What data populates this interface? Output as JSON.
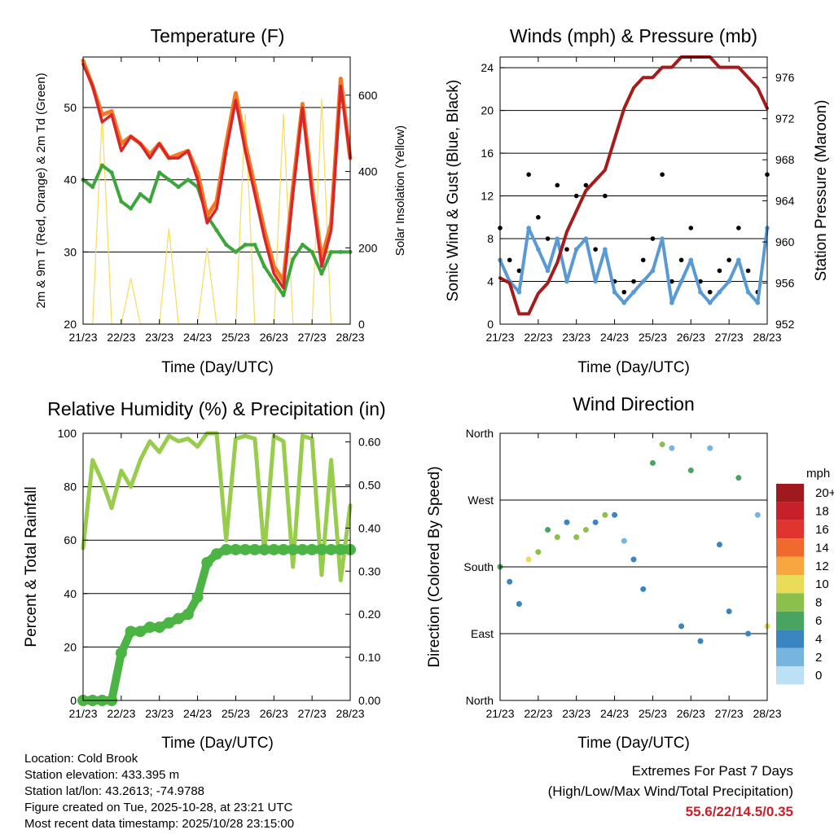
{
  "panels": {
    "temperature": {
      "title": "Temperature (F)",
      "xlabel": "Time (Day/UTC)",
      "ylabel_left": "2m & 9m T (Red, Orange) & 2m Td (Green)",
      "ylabel_right": "Solar Insolation (Yellow)",
      "left_ticks": [
        "20",
        "30",
        "40",
        "50"
      ],
      "right_ticks": [
        "0",
        "200",
        "400",
        "600"
      ]
    },
    "winds": {
      "title": "Winds (mph) & Pressure (mb)",
      "xlabel": "Time (Day/UTC)",
      "ylabel_left": "Sonic Wind & Gust (Blue, Black)",
      "ylabel_right": "Station Pressure (Maroon)",
      "left_ticks": [
        "0",
        "4",
        "8",
        "12",
        "16",
        "20",
        "24"
      ],
      "right_ticks": [
        "952",
        "956",
        "960",
        "964",
        "968",
        "972",
        "976"
      ]
    },
    "humidity": {
      "title": "Relative Humidity (%) & Precipitation (in)",
      "xlabel": "Time (Day/UTC)",
      "ylabel_left": "Percent & Total Rainfall",
      "left_ticks": [
        "0",
        "20",
        "40",
        "60",
        "80",
        "100"
      ],
      "right_ticks": [
        "0.00",
        "0.10",
        "0.20",
        "0.30",
        "0.40",
        "0.50",
        "0.60"
      ]
    },
    "direction": {
      "title": "Wind Direction",
      "xlabel": "Time (Day/UTC)",
      "ylabel_left": "Direction (Colored By Speed)",
      "left_ticks": [
        "North",
        "East",
        "South",
        "West",
        "North"
      ]
    }
  },
  "x_ticks": [
    "21/23",
    "22/23",
    "23/23",
    "24/23",
    "25/23",
    "26/23",
    "27/23",
    "28/23"
  ],
  "legend": {
    "title": "mph",
    "labels": [
      "20+",
      "18",
      "16",
      "14",
      "12",
      "10",
      "8",
      "6",
      "4",
      "2",
      "0"
    ],
    "colors": [
      "#9e1a1e",
      "#c8202a",
      "#e0342e",
      "#f06a2e",
      "#f8a640",
      "#e8dc58",
      "#8cc04c",
      "#48a460",
      "#3a84c0",
      "#78b4e0",
      "#bce0f6"
    ]
  },
  "colors": {
    "temp_2m": "#d8262a",
    "temp_9m": "#f47a22",
    "dewpoint": "#3ca63c",
    "solar": "#f6dc5a",
    "wind": "#5a9ad4",
    "gust": "#000000",
    "pressure": "#a41c1c",
    "rh": "#98cc4c",
    "precip": "#4cb444"
  },
  "info": {
    "location": "Location: Cold Brook",
    "elevation": "Station elevation: 433.395 m",
    "latlon": "Station lat/lon: 43.2613; -74.9788",
    "created": "Figure created on Tue, 2025-10-28, at 23:21 UTC",
    "recent": "Most recent data timestamp: 2025/10/28 23:15:00"
  },
  "extremes": {
    "title": "Extremes For Past 7 Days",
    "subtitle": "(High/Low/Max Wind/Total Precipitation)",
    "values": "55.6/22/14.5/0.35"
  },
  "chart_data": [
    {
      "type": "line",
      "title": "Temperature (F)",
      "x": [
        21,
        21.25,
        21.5,
        21.75,
        22,
        22.25,
        22.5,
        22.75,
        23,
        23.25,
        23.5,
        23.75,
        24,
        24.25,
        24.5,
        24.75,
        25,
        25.25,
        25.5,
        25.75,
        26,
        26.25,
        26.5,
        26.75,
        27,
        27.25,
        27.5,
        27.75,
        28
      ],
      "series": [
        {
          "name": "2m T",
          "axis": "left",
          "values": [
            56,
            53,
            48,
            49,
            44,
            46,
            45,
            43,
            45,
            43,
            43,
            44,
            40,
            34,
            36,
            44,
            51,
            44,
            38,
            32,
            27,
            25,
            38,
            50,
            38,
            28,
            33,
            53,
            43
          ]
        },
        {
          "name": "9m T",
          "axis": "left",
          "values": [
            56.5,
            53,
            49,
            49.5,
            45,
            46,
            45,
            43.5,
            45,
            43,
            43.5,
            44,
            41,
            35,
            37,
            45,
            52,
            45,
            39,
            33,
            28,
            26,
            39,
            50.5,
            39,
            29,
            34,
            54,
            43
          ]
        },
        {
          "name": "2m Td",
          "axis": "left",
          "values": [
            40,
            39,
            42,
            41,
            37,
            36,
            38,
            37,
            41,
            40,
            39,
            40,
            39,
            35,
            33,
            31,
            30,
            31,
            31,
            28,
            26,
            24,
            29,
            31,
            30,
            27,
            30,
            30,
            30
          ]
        },
        {
          "name": "Solar Insolation",
          "axis": "right",
          "values": [
            0,
            0,
            550,
            0,
            0,
            120,
            0,
            0,
            0,
            250,
            0,
            0,
            0,
            200,
            0,
            0,
            0,
            550,
            0,
            0,
            0,
            550,
            0,
            0,
            0,
            590,
            0,
            0,
            0
          ]
        }
      ],
      "xlabel": "Time (Day/UTC)",
      "ylim_left": [
        20,
        57
      ],
      "ylim_right": [
        0,
        700
      ]
    },
    {
      "type": "line",
      "title": "Winds (mph) & Pressure (mb)",
      "x": [
        21,
        21.25,
        21.5,
        21.75,
        22,
        22.25,
        22.5,
        22.75,
        23,
        23.25,
        23.5,
        23.75,
        24,
        24.25,
        24.5,
        24.75,
        25,
        25.25,
        25.5,
        25.75,
        26,
        26.25,
        26.5,
        26.75,
        27,
        27.25,
        27.5,
        27.75,
        28
      ],
      "series": [
        {
          "name": "Sonic Wind",
          "axis": "left",
          "values": [
            6,
            4,
            3,
            9,
            7,
            5,
            8,
            4,
            7,
            8,
            4,
            7,
            3,
            2,
            3,
            4,
            5,
            8,
            2,
            4,
            6,
            3,
            2,
            3,
            4,
            6,
            3,
            2,
            9
          ]
        },
        {
          "name": "Gust",
          "axis": "left",
          "values": [
            9,
            6,
            5,
            14,
            10,
            8,
            13,
            7,
            12,
            13,
            7,
            12,
            4,
            3,
            4,
            6,
            8,
            14,
            4,
            6,
            9,
            4,
            3,
            5,
            6,
            9,
            5,
            3,
            14
          ]
        },
        {
          "name": "Station Pressure",
          "axis": "right",
          "values": [
            956.5,
            956,
            953,
            953,
            955,
            956,
            958,
            961,
            963,
            965,
            966,
            967,
            970,
            973,
            975,
            976,
            976,
            977,
            977,
            978,
            978,
            978,
            978,
            977,
            977,
            977,
            976,
            975,
            973
          ]
        }
      ],
      "xlabel": "Time (Day/UTC)",
      "ylim_left": [
        0,
        25
      ],
      "ylim_right": [
        952,
        978
      ]
    },
    {
      "type": "line",
      "title": "Relative Humidity (%) & Precipitation (in)",
      "x": [
        21,
        21.25,
        21.5,
        21.75,
        22,
        22.25,
        22.5,
        22.75,
        23,
        23.25,
        23.5,
        23.75,
        24,
        24.25,
        24.5,
        24.75,
        25,
        25.25,
        25.5,
        25.75,
        26,
        26.25,
        26.5,
        26.75,
        27,
        27.25,
        27.5,
        27.75,
        28
      ],
      "series": [
        {
          "name": "Relative Humidity",
          "axis": "left",
          "values": [
            57,
            90,
            82,
            72,
            86,
            80,
            90,
            97,
            93,
            99,
            97,
            98,
            95,
            100,
            100,
            60,
            98,
            99,
            98,
            55,
            99,
            97,
            50,
            99,
            98,
            47,
            90,
            45,
            73
          ]
        },
        {
          "name": "Total Precipitation",
          "axis": "right",
          "values": [
            0,
            0,
            0,
            0,
            0.11,
            0.16,
            0.16,
            0.17,
            0.17,
            0.18,
            0.19,
            0.2,
            0.24,
            0.32,
            0.34,
            0.35,
            0.35,
            0.35,
            0.35,
            0.35,
            0.35,
            0.35,
            0.35,
            0.35,
            0.35,
            0.35,
            0.35,
            0.35,
            0.35
          ]
        }
      ],
      "xlabel": "Time (Day/UTC)",
      "ylim_left": [
        0,
        100
      ],
      "ylim_right": [
        0,
        0.62
      ]
    },
    {
      "type": "scatter",
      "title": "Wind Direction",
      "x": [
        21,
        21.25,
        21.5,
        21.75,
        22,
        22.25,
        22.5,
        22.75,
        23,
        23.25,
        23.5,
        23.75,
        24,
        24.25,
        24.5,
        24.75,
        25,
        25.25,
        25.5,
        25.75,
        26,
        26.25,
        26.5,
        26.75,
        27,
        27.25,
        27.5,
        27.75,
        28
      ],
      "series": [
        {
          "name": "Direction (deg)",
          "values": [
            180,
            160,
            130,
            190,
            200,
            230,
            220,
            240,
            220,
            230,
            240,
            250,
            250,
            215,
            190,
            150,
            320,
            345,
            340,
            100,
            310,
            80,
            340,
            210,
            120,
            300,
            90,
            250,
            100
          ]
        },
        {
          "name": "Speed (mph)",
          "values": [
            6,
            4,
            3,
            9,
            7,
            5,
            8,
            4,
            7,
            8,
            4,
            7,
            3,
            2,
            3,
            4,
            5,
            8,
            2,
            4,
            6,
            3,
            2,
            3,
            4,
            6,
            3,
            2,
            9
          ]
        }
      ],
      "xlabel": "Time (Day/UTC)",
      "ylim": [
        0,
        360
      ]
    }
  ]
}
